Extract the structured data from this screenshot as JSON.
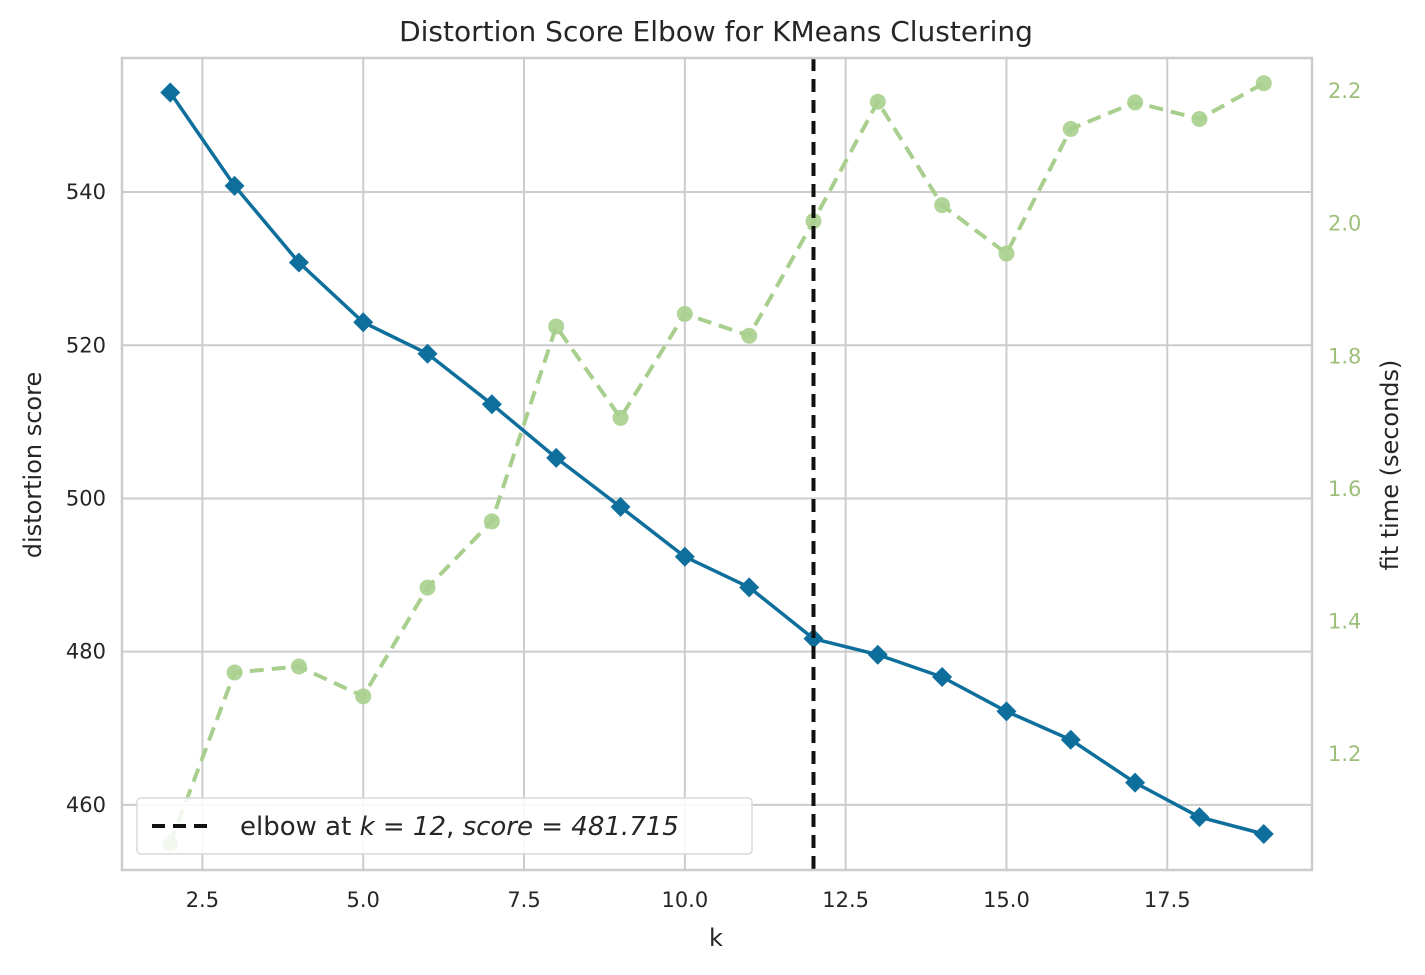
{
  "chart_data": {
    "type": "line",
    "title": "Distortion Score Elbow for KMeans Clustering",
    "xlabel": "k",
    "ylabel": "distortion score",
    "y2label": "fit time (seconds)",
    "xlim": [
      1.25,
      19.75
    ],
    "ylim": [
      451.5,
      557.5
    ],
    "y2lim": [
      1.025,
      2.25
    ],
    "x_ticks": [
      2.5,
      5.0,
      7.5,
      10.0,
      12.5,
      15.0,
      17.5
    ],
    "x_tick_labels": [
      "2.5",
      "5.0",
      "7.5",
      "10.0",
      "12.5",
      "15.0",
      "17.5"
    ],
    "y_ticks": [
      460,
      480,
      500,
      520,
      540
    ],
    "y_tick_labels": [
      "460",
      "480",
      "500",
      "520",
      "540"
    ],
    "y2_ticks": [
      1.2,
      1.4,
      1.6,
      1.8,
      2.0,
      2.2
    ],
    "y2_tick_labels": [
      "1.2",
      "1.4",
      "1.6",
      "1.8",
      "2.0",
      "2.2"
    ],
    "grid": true,
    "x": [
      2,
      3,
      4,
      5,
      6,
      7,
      8,
      9,
      10,
      11,
      12,
      13,
      14,
      15,
      16,
      17,
      18,
      19
    ],
    "series": [
      {
        "axis": "left",
        "values": [
          553.0,
          540.8,
          530.8,
          523.0,
          518.9,
          512.3,
          505.3,
          498.9,
          492.4,
          488.4,
          481.7,
          479.6,
          476.7,
          472.2,
          468.5,
          462.9,
          458.4,
          456.2
        ],
        "color": "#0e6f9c",
        "marker": "diamond",
        "linestyle": "solid"
      },
      {
        "axis": "right",
        "values": [
          1.065,
          1.323,
          1.332,
          1.287,
          1.451,
          1.551,
          1.845,
          1.707,
          1.864,
          1.831,
          2.004,
          2.184,
          2.028,
          1.955,
          2.143,
          2.183,
          2.158,
          2.212
        ],
        "color": "#a9cf8e",
        "marker": "circle",
        "linestyle": "dashed"
      }
    ],
    "elbow": {
      "k": 12,
      "score": 481.715,
      "color": "#111111"
    },
    "legend": {
      "placement": "lower-left",
      "label_prefix": "elbow at ",
      "label_k_part": "k = 12",
      "label_sep": ", ",
      "label_score_part": "score = 481.715"
    },
    "right_axis_color": "#9dbf7a"
  }
}
